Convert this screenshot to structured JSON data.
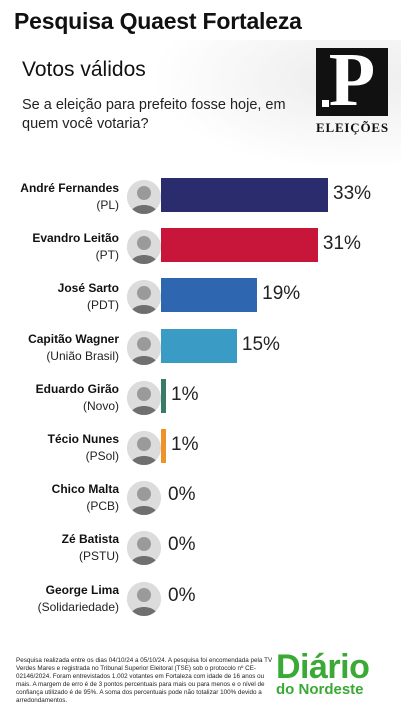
{
  "header": {
    "title": "Pesquisa Quaest Fortaleza",
    "subtitle": "Votos válidos",
    "question": "Se a eleição para prefeito fosse hoje, em quem você votaria?"
  },
  "logo": {
    "label": "ELEIÇÕES"
  },
  "chart_data": {
    "type": "bar",
    "orientation": "horizontal",
    "title": "Votos válidos",
    "categories": [
      "André Fernandes",
      "Evandro Leitão",
      "José Sarto",
      "Capitão Wagner",
      "Eduardo Girão",
      "Técio Nunes",
      "Chico Malta",
      "Zé Batista",
      "George Lima"
    ],
    "parties": [
      "(PL)",
      "(PT)",
      "(PDT)",
      "(União Brasil)",
      "(Novo)",
      "(PSol)",
      "(PCB)",
      "(PSTU)",
      "(Solidariedade)"
    ],
    "values": [
      33,
      31,
      19,
      15,
      1,
      1,
      0,
      0,
      0
    ],
    "labels": [
      "33%",
      "31%",
      "19%",
      "15%",
      "1%",
      "1%",
      "0%",
      "0%",
      "0%"
    ],
    "colors": [
      "#2b2c6e",
      "#c8163a",
      "#2f66b0",
      "#3a9cc4",
      "#3a7a6a",
      "#f0922a",
      "#8a8a8a",
      "#8a8a8a",
      "#8a8a8a"
    ],
    "xlim": [
      0,
      33
    ]
  },
  "footer": {
    "note": "Pesquisa realizada entre os dias 04/10/24 a 05/10/24. A pesquisa foi encomendada pela TV Verdes Mares e registrada no Tribunal Superior Eleitoral (TSE) sob o protocolo nº CE-02146/2024. Foram entrevistados 1.002 votantes em Fortaleza com idade de 16 anos ou mais. A margem de erro é de 3 pontos percentuais para mais ou para menos e o nível de confiança utilizado é de 95%. A soma dos percentuais pode não totalizar 100% devido a arredondamentos.",
    "brand_line1": "Diário",
    "brand_line2": "do Nordeste"
  }
}
